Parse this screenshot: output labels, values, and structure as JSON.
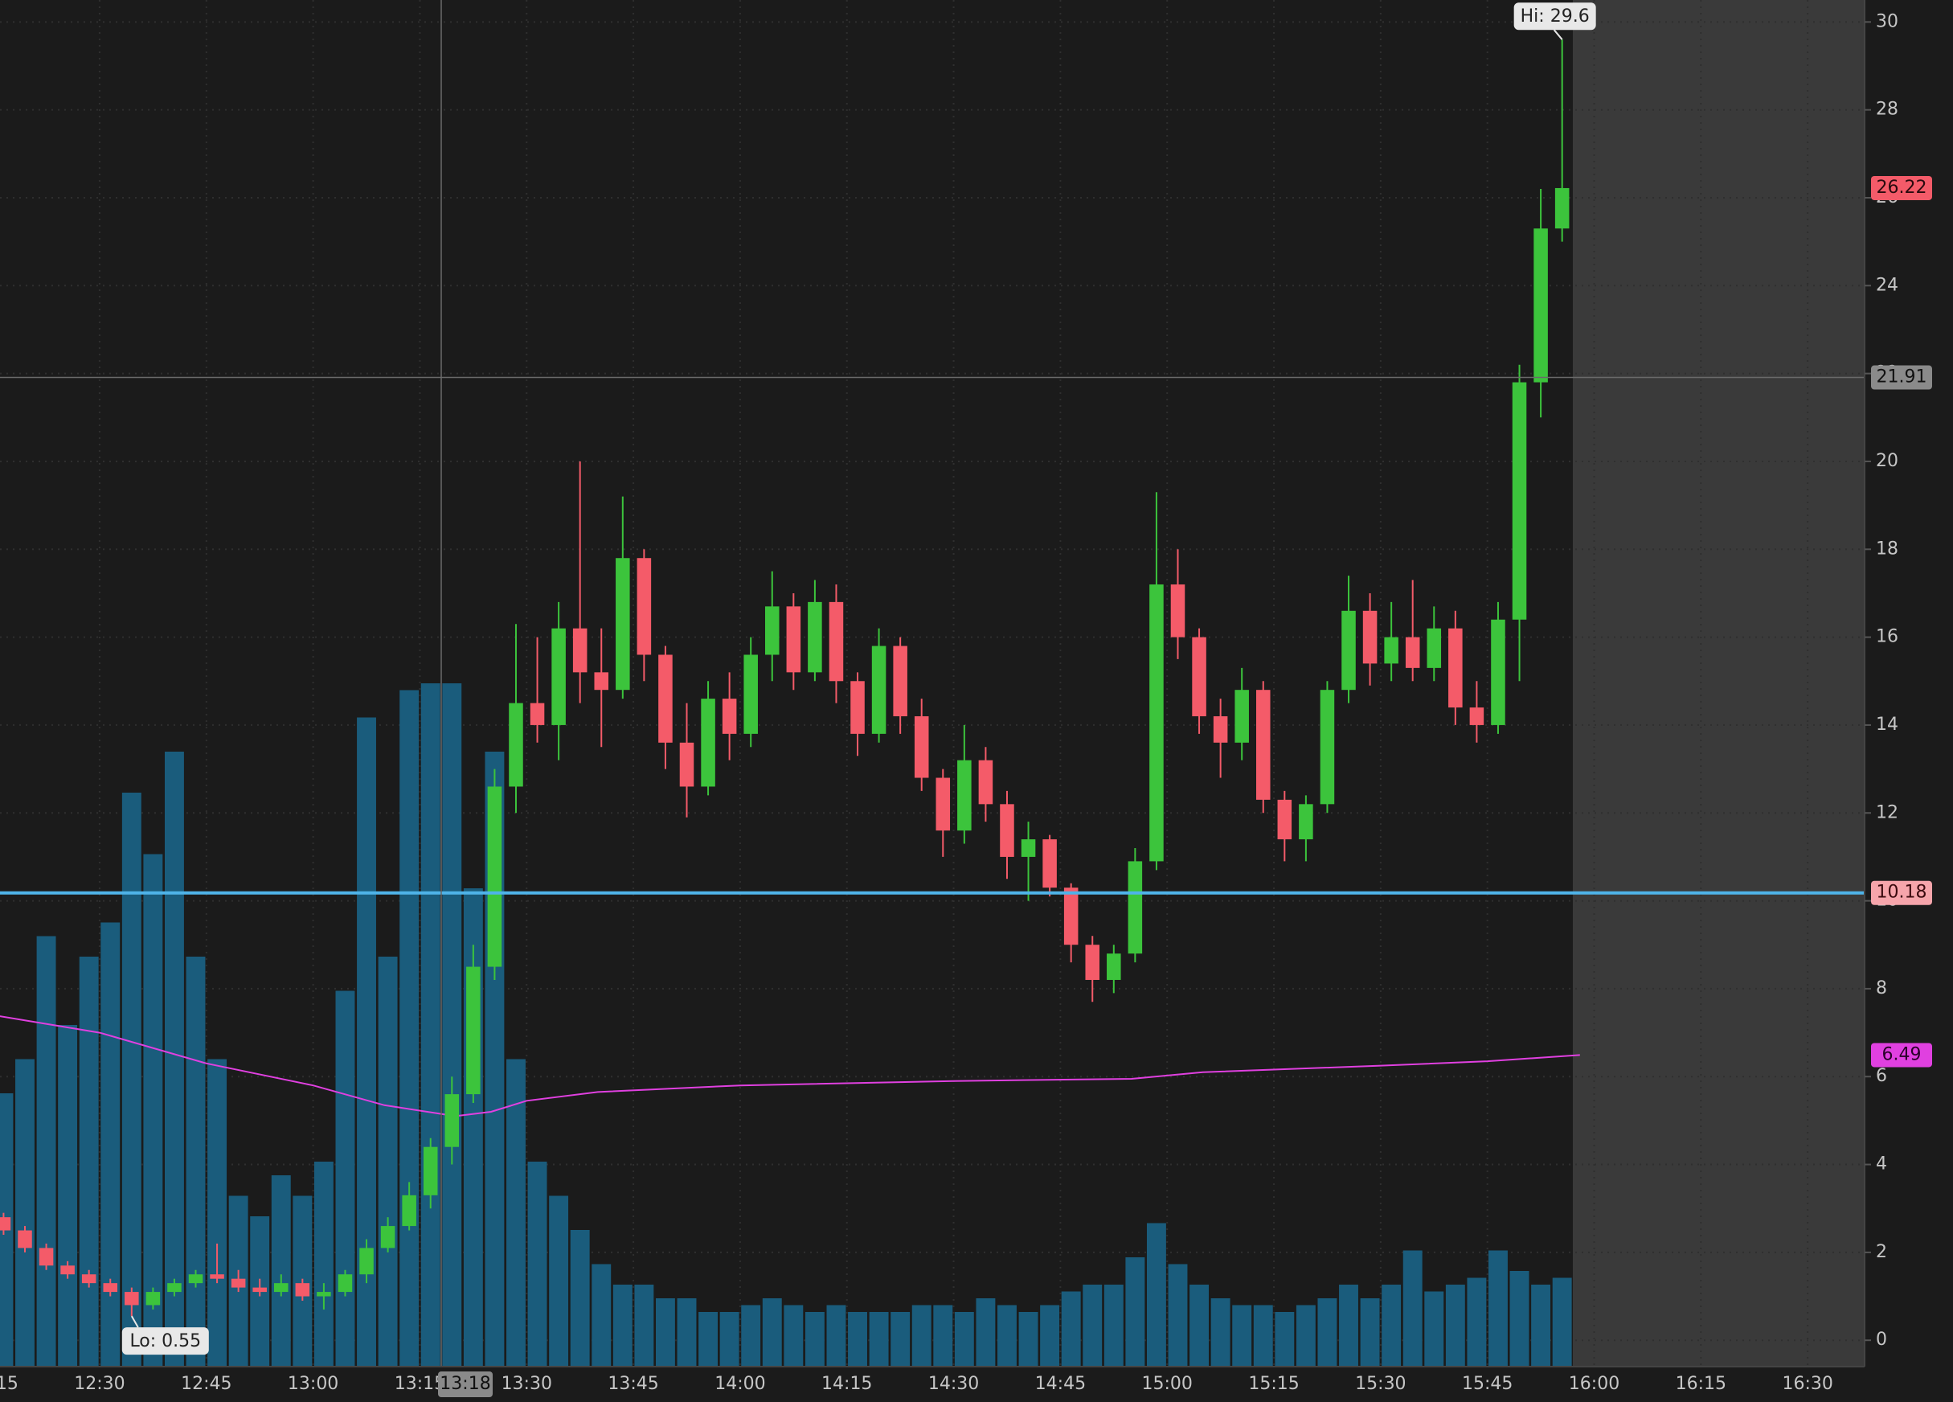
{
  "chart_data": {
    "type": "candlestick",
    "x": [
      "12:15",
      "12:18",
      "12:21",
      "12:24",
      "12:27",
      "12:30",
      "12:33",
      "12:36",
      "12:39",
      "12:42",
      "12:45",
      "12:48",
      "12:51",
      "12:54",
      "12:57",
      "13:00",
      "13:03",
      "13:06",
      "13:09",
      "13:12",
      "13:15",
      "13:18",
      "13:21",
      "13:24",
      "13:27",
      "13:30",
      "13:33",
      "13:36",
      "13:39",
      "13:42",
      "13:45",
      "13:48",
      "13:51",
      "13:54",
      "13:57",
      "14:00",
      "14:03",
      "14:06",
      "14:09",
      "14:12",
      "14:15",
      "14:18",
      "14:21",
      "14:24",
      "14:27",
      "14:30",
      "14:33",
      "14:36",
      "14:39",
      "14:42",
      "14:45",
      "14:48",
      "14:51",
      "14:54",
      "14:57",
      "15:00",
      "15:03",
      "15:06",
      "15:09",
      "15:12",
      "15:15",
      "15:18",
      "15:21",
      "15:24",
      "15:27",
      "15:30",
      "15:33",
      "15:36",
      "15:39",
      "15:42",
      "15:45",
      "15:48",
      "15:51",
      "15:54"
    ],
    "open": [
      2.8,
      2.5,
      2.1,
      1.7,
      1.5,
      1.3,
      1.1,
      0.8,
      1.1,
      1.3,
      1.5,
      1.4,
      1.2,
      1.1,
      1.3,
      1.0,
      1.1,
      1.5,
      2.1,
      2.6,
      3.3,
      4.4,
      5.6,
      8.5,
      12.6,
      14.5,
      14.0,
      16.2,
      15.2,
      14.8,
      17.8,
      15.6,
      13.6,
      12.6,
      14.6,
      13.8,
      15.6,
      16.7,
      15.2,
      16.8,
      15.0,
      13.8,
      15.8,
      14.2,
      12.8,
      11.6,
      13.2,
      12.2,
      11.0,
      11.4,
      10.3,
      9.0,
      8.2,
      8.8,
      10.9,
      17.2,
      16.0,
      14.2,
      13.6,
      14.8,
      12.3,
      11.4,
      12.2,
      14.8,
      16.6,
      15.4,
      16.0,
      15.3,
      16.2,
      14.4,
      14.0,
      16.4,
      21.8,
      25.3
    ],
    "high": [
      2.9,
      2.6,
      2.2,
      1.8,
      1.6,
      1.4,
      1.2,
      1.2,
      1.4,
      1.6,
      2.2,
      1.6,
      1.4,
      1.5,
      1.4,
      1.3,
      1.6,
      2.3,
      2.8,
      3.6,
      4.6,
      6.0,
      9.0,
      13.0,
      16.3,
      16.0,
      16.8,
      20.0,
      16.2,
      19.2,
      18.0,
      15.8,
      14.5,
      15.0,
      15.2,
      16.0,
      17.5,
      17.0,
      17.3,
      17.2,
      15.2,
      16.2,
      16.0,
      14.6,
      13.0,
      14.0,
      13.5,
      12.5,
      11.8,
      11.5,
      10.4,
      9.2,
      9.0,
      11.2,
      19.3,
      18.0,
      16.2,
      14.6,
      15.3,
      15.0,
      12.5,
      12.4,
      15.0,
      17.4,
      17.0,
      16.8,
      17.3,
      16.7,
      16.6,
      15.0,
      16.8,
      22.2,
      26.2,
      29.6
    ],
    "low": [
      2.4,
      2.0,
      1.6,
      1.4,
      1.2,
      1.0,
      0.55,
      0.7,
      1.0,
      1.2,
      1.3,
      1.1,
      1.0,
      1.0,
      0.9,
      0.7,
      1.0,
      1.3,
      2.0,
      2.5,
      3.0,
      4.0,
      5.4,
      8.2,
      12.0,
      13.6,
      13.2,
      14.5,
      13.5,
      14.6,
      15.0,
      13.0,
      11.9,
      12.4,
      13.2,
      13.5,
      15.0,
      14.8,
      15.0,
      14.5,
      13.3,
      13.6,
      13.8,
      12.5,
      11.0,
      11.3,
      11.8,
      10.5,
      10.0,
      10.1,
      8.6,
      7.7,
      7.9,
      8.6,
      10.7,
      15.5,
      13.8,
      12.8,
      13.2,
      12.0,
      10.9,
      10.9,
      12.0,
      14.5,
      14.9,
      15.0,
      15.0,
      15.0,
      14.0,
      13.6,
      13.8,
      15.0,
      21.0,
      25.0
    ],
    "close": [
      2.5,
      2.1,
      1.7,
      1.5,
      1.3,
      1.1,
      0.8,
      1.1,
      1.3,
      1.5,
      1.4,
      1.2,
      1.1,
      1.3,
      1.0,
      1.1,
      1.5,
      2.1,
      2.6,
      3.3,
      4.4,
      5.6,
      8.5,
      12.6,
      14.5,
      14.0,
      16.2,
      15.2,
      14.8,
      17.8,
      15.6,
      13.6,
      12.6,
      14.6,
      13.8,
      15.6,
      16.7,
      15.2,
      16.8,
      15.0,
      13.8,
      15.8,
      14.2,
      12.8,
      11.6,
      13.2,
      12.2,
      11.0,
      11.4,
      10.3,
      9.0,
      8.2,
      8.8,
      10.9,
      17.2,
      16.0,
      14.2,
      13.6,
      14.8,
      12.3,
      11.4,
      12.2,
      14.8,
      16.6,
      15.4,
      16.0,
      15.3,
      16.2,
      14.4,
      14.0,
      16.4,
      21.8,
      25.3,
      26.22
    ],
    "volume": [
      40,
      45,
      63,
      50,
      60,
      65,
      84,
      75,
      90,
      60,
      45,
      25,
      22,
      28,
      25,
      30,
      55,
      95,
      60,
      99,
      100,
      100,
      70,
      90,
      45,
      30,
      25,
      20,
      15,
      12,
      12,
      10,
      10,
      8,
      8,
      9,
      10,
      9,
      8,
      9,
      8,
      8,
      8,
      9,
      9,
      8,
      10,
      9,
      8,
      9,
      11,
      12,
      12,
      16,
      21,
      15,
      12,
      10,
      9,
      9,
      8,
      9,
      10,
      12,
      10,
      12,
      17,
      11,
      12,
      13,
      17,
      14,
      12,
      13
    ],
    "up_color": "#3cc43c",
    "down_color": "#f45b69",
    "volume_color": "#1a5c7c",
    "xlim": [
      "12:16",
      "16:38"
    ],
    "xticks": [
      "12:15",
      "12:30",
      "12:45",
      "13:00",
      "13:15",
      "13:30",
      "13:45",
      "14:00",
      "14:15",
      "14:30",
      "14:45",
      "15:00",
      "15:15",
      "15:30",
      "15:45",
      "16:00",
      "16:15",
      "16:30"
    ],
    "ylim": [
      -0.6,
      30.5
    ],
    "yticks": [
      0,
      2,
      4,
      6,
      8,
      10,
      12,
      14,
      16,
      18,
      20,
      22,
      24,
      26,
      28,
      30
    ],
    "y2lim": [
      0,
      200
    ],
    "grid": true,
    "extended_shade_from": "15:57",
    "vwap": {
      "color": "#e040e0",
      "x": [
        "12:15",
        "12:30",
        "12:45",
        "13:00",
        "13:10",
        "13:20",
        "13:25",
        "13:30",
        "13:40",
        "14:00",
        "14:30",
        "14:55",
        "15:05",
        "15:30",
        "15:45",
        "15:58"
      ],
      "values": [
        7.4,
        7.0,
        6.3,
        5.8,
        5.35,
        5.1,
        5.2,
        5.45,
        5.65,
        5.8,
        5.9,
        5.95,
        6.1,
        6.25,
        6.35,
        6.49
      ]
    },
    "hline": {
      "value": 10.18,
      "color": "#4fb3e8"
    },
    "crosshair": {
      "x": "13:18",
      "y": 21.91
    },
    "hi_label": "Hi: 29.6",
    "lo_label": "Lo: 0.55"
  }
}
